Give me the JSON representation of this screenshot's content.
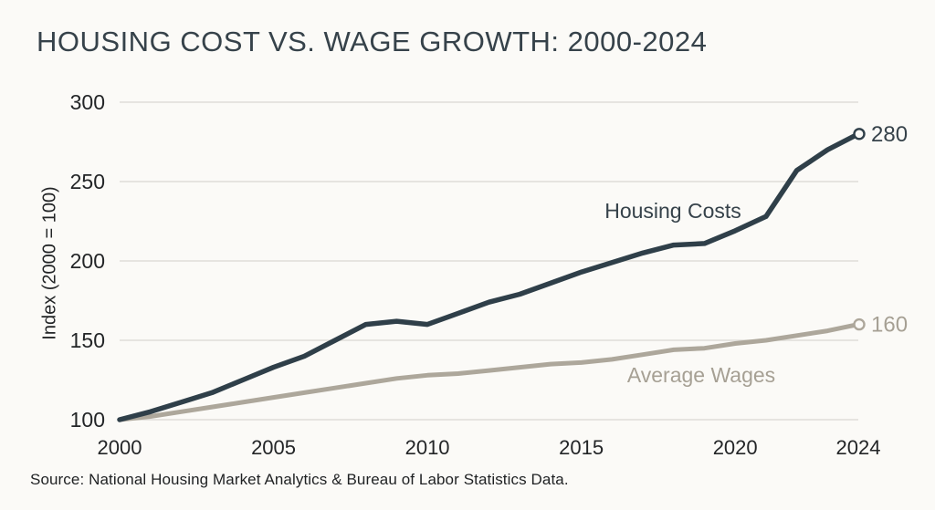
{
  "page": {
    "title": "HOUSING COST VS. WAGE GROWTH: 2000-2024",
    "source": "Source: National Housing Market Analytics & Bureau of Labor Statistics Data."
  },
  "colors": {
    "background": "#fbfaf7",
    "title_text": "#36424a",
    "axis_text": "#232527",
    "gridline": "#dfddd8",
    "marker_fill": "#fbfaf7"
  },
  "chart_data": {
    "type": "line",
    "title": "HOUSING COST VS. WAGE GROWTH: 2000-2024",
    "xlabel": "",
    "ylabel": "Index (2000 = 100)",
    "x": [
      2000,
      2001,
      2002,
      2003,
      2004,
      2005,
      2006,
      2007,
      2008,
      2009,
      2010,
      2011,
      2012,
      2013,
      2014,
      2015,
      2016,
      2017,
      2018,
      2019,
      2020,
      2021,
      2022,
      2023,
      2024
    ],
    "series": [
      {
        "name": "Housing Costs",
        "values": [
          100,
          105,
          111,
          117,
          125,
          133,
          140,
          150,
          160,
          162,
          160,
          167,
          174,
          179,
          186,
          193,
          199,
          205,
          210,
          211,
          219,
          228,
          257,
          270,
          280
        ],
        "color": "#2f3f49",
        "label_color": "#36424a",
        "end_label": "280"
      },
      {
        "name": "Average Wages",
        "values": [
          100,
          102,
          105,
          108,
          111,
          114,
          117,
          120,
          123,
          126,
          128,
          129,
          131,
          133,
          135,
          136,
          138,
          141,
          144,
          145,
          148,
          150,
          153,
          156,
          160
        ],
        "color": "#ada79b",
        "label_color": "#a6a094",
        "end_label": "160"
      }
    ],
    "ylim": [
      100,
      300
    ],
    "yticks": [
      100,
      150,
      200,
      250,
      300
    ],
    "xticks": [
      2000,
      2005,
      2010,
      2015,
      2020,
      2024
    ],
    "grid": "horizontal",
    "legend": "inline-labels",
    "end_markers": "open-circle"
  }
}
